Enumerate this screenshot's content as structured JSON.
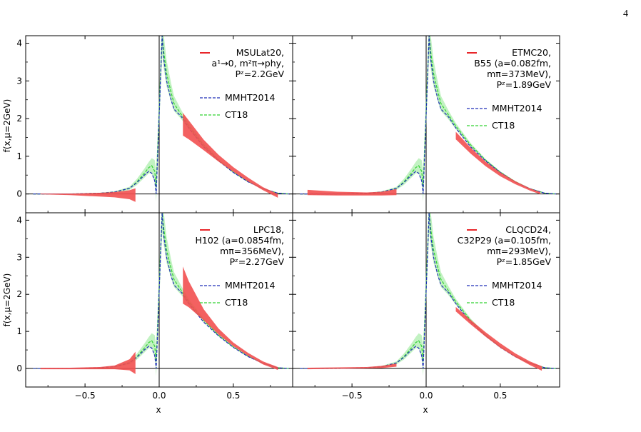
{
  "page_number": "4",
  "colors": {
    "lattice": "#e8262a",
    "lattice_band": "#f25050",
    "mmht": "#1f2fb8",
    "ct18": "#32d232",
    "ct18_band": "#8fe88f"
  },
  "x_ticks": [
    "−0.5",
    "0.0",
    "0.5"
  ],
  "y_ticks": [
    "0",
    "1",
    "2",
    "3",
    "4"
  ],
  "x_label": "x",
  "y_label": "f(x,μ=2GeV)",
  "legend_common": {
    "mmht": "MMHT2014",
    "ct18": "CT18"
  },
  "chart_data": [
    {
      "type": "line",
      "panel": "top-left",
      "xlim": [
        -0.9,
        0.9
      ],
      "ylim": [
        -0.5,
        4.2
      ],
      "legend_lines": [
        "MSULat20,",
        "a¹→0, m²π→phy,",
        "Pᶻ=2.2GeV"
      ],
      "series": [
        {
          "name": "MSULat20",
          "x": [
            -0.8,
            -0.6,
            -0.4,
            -0.3,
            -0.2,
            -0.16,
            0.16,
            0.2,
            0.3,
            0.4,
            0.5,
            0.6,
            0.7,
            0.8
          ],
          "y": [
            0.0,
            -0.01,
            -0.02,
            -0.02,
            -0.02,
            -0.03,
            1.85,
            1.7,
            1.3,
            0.95,
            0.65,
            0.38,
            0.14,
            -0.05
          ],
          "err": [
            0.01,
            0.02,
            0.05,
            0.07,
            0.12,
            0.18,
            0.3,
            0.25,
            0.14,
            0.09,
            0.06,
            0.05,
            0.04,
            0.05
          ]
        }
      ]
    },
    {
      "type": "line",
      "panel": "top-right",
      "xlim": [
        -0.9,
        0.9
      ],
      "ylim": [
        -0.5,
        4.2
      ],
      "legend_lines": [
        "ETMC20,",
        "B55 (a=0.082fm,",
        "mπ=373MeV),",
        "Pᶻ=1.89GeV"
      ],
      "series": [
        {
          "name": "ETMC20",
          "x": [
            -0.8,
            -0.6,
            -0.4,
            -0.3,
            -0.2,
            0.2,
            0.3,
            0.4,
            0.5,
            0.6,
            0.7,
            0.77
          ],
          "y": [
            0.04,
            0.01,
            0.0,
            0.01,
            0.05,
            1.55,
            1.15,
            0.8,
            0.52,
            0.3,
            0.12,
            0.02
          ],
          "err": [
            0.07,
            0.05,
            0.04,
            0.05,
            0.08,
            0.1,
            0.08,
            0.06,
            0.05,
            0.04,
            0.03,
            0.03
          ]
        }
      ]
    },
    {
      "type": "line",
      "panel": "bottom-left",
      "xlim": [
        -0.9,
        0.9
      ],
      "ylim": [
        -0.5,
        4.2
      ],
      "legend_lines": [
        "LPC18,",
        "H102 (a=0.0854fm,",
        "mπ=356MeV),",
        "Pᶻ=2.27GeV"
      ],
      "series": [
        {
          "name": "LPC18",
          "x": [
            -0.8,
            -0.6,
            -0.4,
            -0.3,
            -0.2,
            -0.16,
            0.16,
            0.2,
            0.3,
            0.4,
            0.5,
            0.6,
            0.7,
            0.8
          ],
          "y": [
            0.0,
            0.0,
            0.01,
            0.03,
            0.1,
            0.15,
            2.25,
            2.0,
            1.45,
            1.0,
            0.65,
            0.38,
            0.15,
            0.0
          ],
          "err": [
            0.02,
            0.02,
            0.03,
            0.05,
            0.15,
            0.3,
            0.5,
            0.35,
            0.15,
            0.08,
            0.05,
            0.04,
            0.04,
            0.04
          ]
        }
      ]
    },
    {
      "type": "line",
      "panel": "bottom-right",
      "xlim": [
        -0.9,
        0.9
      ],
      "ylim": [
        -0.5,
        4.2
      ],
      "legend_lines": [
        "CLQCD24,",
        "C32P29 (a=0.105fm,",
        "mπ=293MeV),",
        "Pᶻ=1.85GeV"
      ],
      "series": [
        {
          "name": "CLQCD24",
          "x": [
            -0.8,
            -0.6,
            -0.4,
            -0.3,
            -0.2,
            0.2,
            0.3,
            0.4,
            0.5,
            0.6,
            0.7,
            0.78
          ],
          "y": [
            0.0,
            0.01,
            0.02,
            0.04,
            0.09,
            1.6,
            1.25,
            0.92,
            0.62,
            0.36,
            0.14,
            0.0
          ],
          "err": [
            0.02,
            0.02,
            0.02,
            0.03,
            0.04,
            0.06,
            0.06,
            0.06,
            0.06,
            0.05,
            0.05,
            0.06
          ]
        }
      ]
    }
  ],
  "reference_curves": {
    "mmht": {
      "x": [
        -0.85,
        -0.6,
        -0.4,
        -0.3,
        -0.2,
        -0.15,
        -0.1,
        -0.07,
        -0.05,
        -0.03,
        -0.02,
        0.02,
        0.03,
        0.05,
        0.08,
        0.1,
        0.15,
        0.2,
        0.3,
        0.4,
        0.5,
        0.6,
        0.7,
        0.8,
        0.88
      ],
      "y": [
        0.0,
        0.0,
        0.02,
        0.05,
        0.15,
        0.3,
        0.5,
        0.6,
        0.55,
        0.35,
        0.0,
        4.2,
        3.6,
        3.0,
        2.5,
        2.25,
        2.05,
        1.75,
        1.25,
        0.88,
        0.57,
        0.32,
        0.14,
        0.02,
        0.0
      ]
    },
    "ct18": {
      "x": [
        -0.85,
        -0.6,
        -0.4,
        -0.3,
        -0.2,
        -0.15,
        -0.1,
        -0.07,
        -0.05,
        -0.03,
        -0.02,
        0.02,
        0.03,
        0.05,
        0.08,
        0.1,
        0.15,
        0.2,
        0.3,
        0.4,
        0.5,
        0.6,
        0.7,
        0.8,
        0.88
      ],
      "y": [
        0.0,
        0.0,
        0.02,
        0.05,
        0.15,
        0.32,
        0.55,
        0.7,
        0.75,
        0.6,
        0.2,
        4.2,
        3.8,
        3.2,
        2.7,
        2.4,
        2.1,
        1.8,
        1.3,
        0.9,
        0.58,
        0.33,
        0.14,
        0.02,
        0.0
      ],
      "err": [
        0.0,
        0.0,
        0.01,
        0.02,
        0.04,
        0.08,
        0.12,
        0.15,
        0.2,
        0.3,
        0.4,
        0.5,
        0.45,
        0.35,
        0.25,
        0.2,
        0.12,
        0.08,
        0.05,
        0.03,
        0.02,
        0.01,
        0.01,
        0.0,
        0.0
      ]
    }
  }
}
